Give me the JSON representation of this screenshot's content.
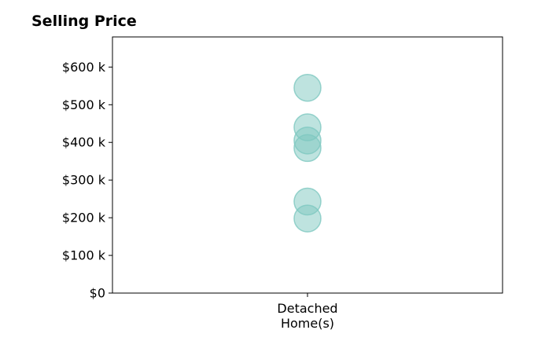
{
  "chart_data": {
    "type": "scatter",
    "title": "Selling Price",
    "xlabel": "",
    "ylabel": "",
    "categories": [
      "Detached\nHome(s)"
    ],
    "series": [
      {
        "category": "Detached\nHome(s)",
        "values": [
          545000,
          440000,
          405000,
          385000,
          243000,
          198000
        ]
      }
    ],
    "ylim": [
      0,
      680000
    ],
    "yticks": [
      0,
      100000,
      200000,
      300000,
      400000,
      500000,
      600000
    ],
    "ytick_labels": [
      "$0",
      "$100 k",
      "$200 k",
      "$300 k",
      "$400 k",
      "$500 k",
      "$600 k"
    ],
    "grid": false,
    "legend": "none",
    "marker_color": "#7ec8c0"
  }
}
